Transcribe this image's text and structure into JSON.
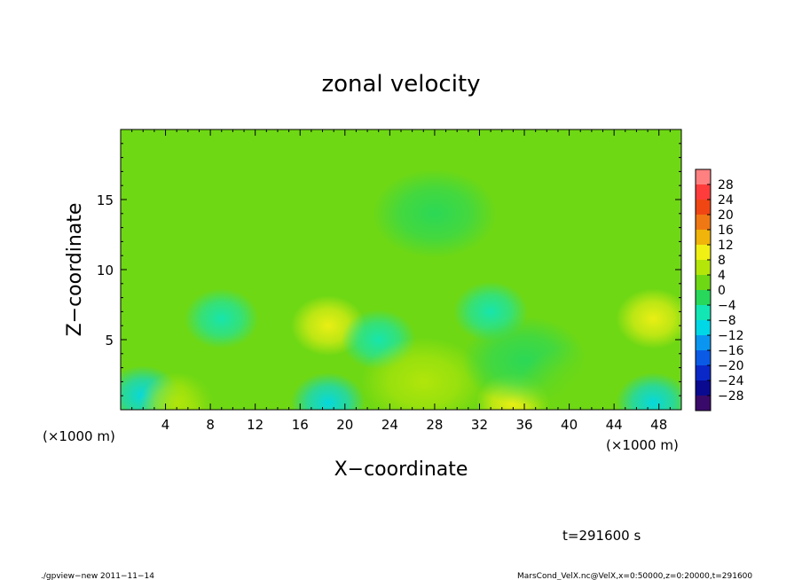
{
  "chart_data": {
    "type": "heatmap",
    "title": "zonal velocity",
    "xlabel": "X−coordinate",
    "ylabel": "Z−coordinate",
    "x_unit_left": "(×1000 m)",
    "x_unit_right": "(×1000 m)",
    "xlim": [
      0,
      50
    ],
    "ylim": [
      0,
      20
    ],
    "x_ticks": [
      4,
      8,
      12,
      16,
      20,
      24,
      28,
      32,
      36,
      40,
      44,
      48
    ],
    "y_ticks": [
      5,
      10,
      15
    ],
    "x_tick_labels": [
      "4",
      "8",
      "12",
      "16",
      "20",
      "24",
      "28",
      "32",
      "36",
      "40",
      "44",
      "48"
    ],
    "y_tick_labels": [
      "5",
      "10",
      "15"
    ],
    "colorbar": {
      "levels": [
        -32,
        -28,
        -24,
        -20,
        -16,
        -12,
        -8,
        -4,
        0,
        4,
        8,
        12,
        16,
        20,
        24,
        28,
        32
      ],
      "labels": [
        "28",
        "24",
        "20",
        "16",
        "12",
        "8",
        "4",
        "0",
        "−4",
        "−8",
        "−12",
        "−16",
        "−20",
        "−24",
        "−28"
      ],
      "colors": [
        "#3a0a6a",
        "#0a0a90",
        "#0a28c8",
        "#0a5ae6",
        "#0a96f0",
        "#00d8e8",
        "#12e6b4",
        "#28d85a",
        "#6ed814",
        "#b4e60a",
        "#f0f014",
        "#f0b40a",
        "#f07814",
        "#f04614",
        "#ff3c3c",
        "#ff8080"
      ]
    },
    "annotation": "t=291600 s",
    "grid": false,
    "features": [
      {
        "x": 2,
        "z": 1.0,
        "value": -9
      },
      {
        "x": 5,
        "z": 0.5,
        "value": 5
      },
      {
        "x": 9,
        "z": 6.5,
        "value": -6
      },
      {
        "x": 11,
        "z": 2.0,
        "value": 2
      },
      {
        "x": 18.5,
        "z": 6.0,
        "value": 11
      },
      {
        "x": 18.5,
        "z": 0.5,
        "value": -11
      },
      {
        "x": 23,
        "z": 5.0,
        "value": -5
      },
      {
        "x": 27,
        "z": 2.0,
        "value": 4
      },
      {
        "x": 33,
        "z": 7.0,
        "value": -8
      },
      {
        "x": 35,
        "z": 0.5,
        "value": 8
      },
      {
        "x": 36,
        "z": 3.5,
        "value": -3
      },
      {
        "x": 41,
        "z": 1.5,
        "value": 3
      },
      {
        "x": 47.5,
        "z": 6.5,
        "value": 11
      },
      {
        "x": 47.5,
        "z": 0.5,
        "value": -12
      },
      {
        "x": 10,
        "z": 15,
        "value": 1
      },
      {
        "x": 37,
        "z": 12,
        "value": 2
      },
      {
        "x": 28,
        "z": 14,
        "value": -1
      }
    ],
    "base_value": 1.5
  },
  "footer": {
    "left": "./gpview−new   2011−11−14",
    "right": "MarsCond_VelX.nc@VelX,x=0:50000,z=0:20000,t=291600"
  }
}
